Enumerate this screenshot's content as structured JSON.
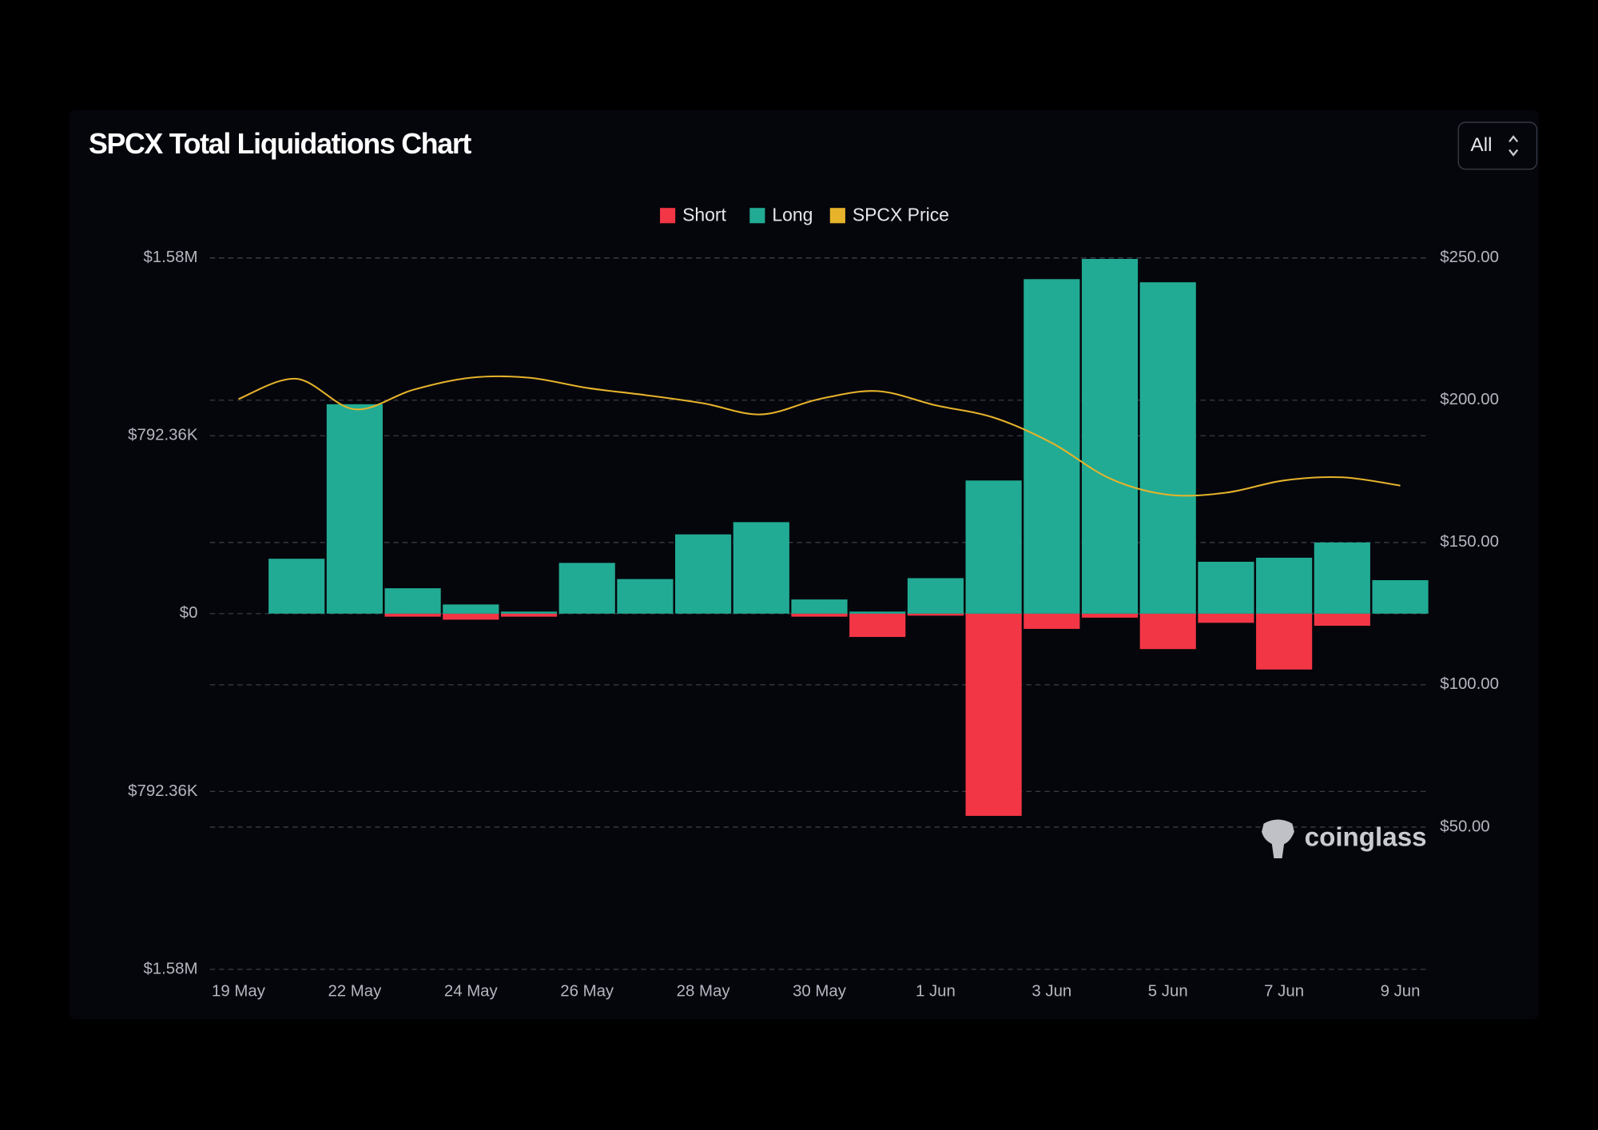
{
  "chart_data": {
    "type": "bar",
    "title": "SPCX Total Liquidations Chart",
    "range_selector": "All",
    "watermark": "coinglass",
    "categories": [
      "19 May",
      null,
      "22 May",
      null,
      "24 May",
      null,
      "26 May",
      null,
      "28 May",
      null,
      "30 May",
      null,
      "1 Jun",
      null,
      "3 Jun",
      null,
      "5 Jun",
      null,
      "7 Jun",
      null,
      "9 Jun"
    ],
    "series": [
      {
        "name": "Short",
        "color": "#f23645",
        "values": [
          null,
          0,
          0,
          -13600,
          -27000,
          -13600,
          0,
          0,
          0,
          0,
          -13600,
          -104000,
          -9000,
          -901000,
          -68000,
          -18000,
          -158000,
          -41000,
          -249000,
          -54000,
          0
        ]
      },
      {
        "name": "Long",
        "color": "#22ab94",
        "values": [
          null,
          244500,
          932800,
          113000,
          40800,
          9000,
          226000,
          154000,
          353000,
          407500,
          63000,
          9000,
          158000,
          593000,
          1490000,
          1580000,
          1476000,
          231000,
          249000,
          317000,
          149000
        ]
      },
      {
        "name": "SPCX Price",
        "color": "#e6b32a",
        "axis": "y2",
        "values": [
          200.4,
          207.5,
          196.8,
          203.6,
          207.9,
          207.9,
          204.3,
          201.8,
          198.9,
          195,
          200.4,
          203.2,
          198.2,
          193.9,
          185,
          172.5,
          166.8,
          167.5,
          171.8,
          172.9,
          170
        ]
      }
    ],
    "ylim": [
      -1584720,
      1584720
    ],
    "yticks": [
      {
        "value": -1584720,
        "label": "$1.58M"
      },
      {
        "value": -792360,
        "label": "$792.36K"
      },
      {
        "value": 0,
        "label": "$0"
      },
      {
        "value": 792360,
        "label": "$792.36K"
      },
      {
        "value": 1584720,
        "label": "$1.58M"
      }
    ],
    "y2lim": [
      0,
      250
    ],
    "y2ticks": [
      {
        "value": 50,
        "label": "$50.00"
      },
      {
        "value": 100,
        "label": "$100.00"
      },
      {
        "value": 150,
        "label": "$150.00"
      },
      {
        "value": 200,
        "label": "$200.00"
      },
      {
        "value": 250,
        "label": "$250.00"
      }
    ],
    "grid": true,
    "legend": "top"
  }
}
